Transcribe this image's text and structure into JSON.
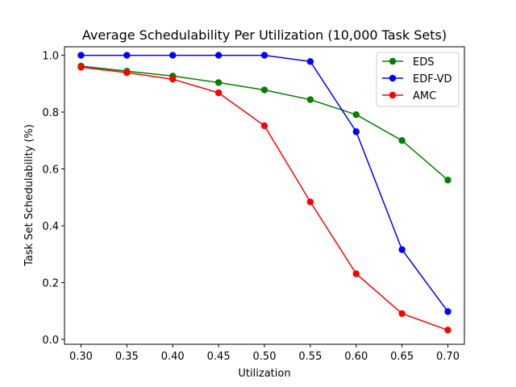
{
  "chart_data": {
    "type": "line",
    "title": "Average Schedulability Per Utilization (10,000 Task Sets)",
    "xlabel": "Utilization",
    "ylabel": "Task Set Schedulability (%)",
    "x": [
      0.3,
      0.35,
      0.4,
      0.45,
      0.5,
      0.55,
      0.6,
      0.65,
      0.7
    ],
    "x_tick_labels": [
      "0.30",
      "0.35",
      "0.40",
      "0.45",
      "0.50",
      "0.55",
      "0.60",
      "0.65",
      "0.70"
    ],
    "y_ticks": [
      0.0,
      0.2,
      0.4,
      0.6,
      0.8,
      1.0
    ],
    "y_tick_labels": [
      "0.0",
      "0.2",
      "0.4",
      "0.6",
      "0.8",
      "1.0"
    ],
    "xlim": [
      0.282,
      0.718
    ],
    "ylim": [
      -0.017,
      1.03
    ],
    "grid": false,
    "legend_position": "top-right",
    "series": [
      {
        "name": "EDS",
        "color": "#008000",
        "marker": "circle",
        "values": [
          0.962,
          0.944,
          0.927,
          0.904,
          0.878,
          0.844,
          0.791,
          0.7,
          0.561
        ]
      },
      {
        "name": "EDF-VD",
        "color": "#0000ff",
        "marker": "circle",
        "values": [
          1.0,
          1.0,
          1.0,
          1.0,
          1.0,
          0.978,
          0.731,
          0.316,
          0.098
        ]
      },
      {
        "name": "AMC",
        "color": "#ff0000",
        "marker": "circle",
        "values": [
          0.958,
          0.939,
          0.916,
          0.868,
          0.752,
          0.484,
          0.231,
          0.091,
          0.033
        ]
      }
    ]
  }
}
